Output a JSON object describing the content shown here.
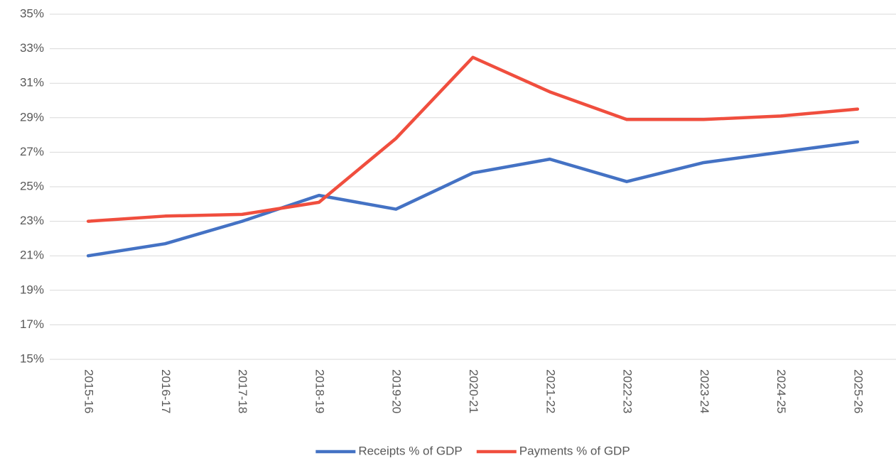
{
  "chart_data": {
    "type": "line",
    "categories": [
      "2015-16",
      "2016-17",
      "2017-18",
      "2018-19",
      "2019-20",
      "2020-21",
      "2021-22",
      "2022-23",
      "2023-24",
      "2024-25",
      "2025-26"
    ],
    "series": [
      {
        "name": "Receipts % of GDP",
        "color": "#4472c4",
        "values": [
          21.0,
          21.7,
          23.0,
          24.5,
          23.7,
          25.8,
          26.6,
          25.3,
          26.4,
          27.0,
          27.6
        ]
      },
      {
        "name": "Payments % of GDP",
        "color": "#f04e3e",
        "values": [
          23.0,
          23.3,
          23.4,
          24.1,
          27.8,
          32.5,
          30.5,
          28.9,
          28.9,
          29.1,
          29.5
        ]
      }
    ],
    "ylim": [
      15,
      35
    ],
    "yticks": [
      {
        "value": 15,
        "label": "15%"
      },
      {
        "value": 17,
        "label": "17%"
      },
      {
        "value": 19,
        "label": "19%"
      },
      {
        "value": 21,
        "label": "21%"
      },
      {
        "value": 23,
        "label": "23%"
      },
      {
        "value": 25,
        "label": "25%"
      },
      {
        "value": 27,
        "label": "27%"
      },
      {
        "value": 29,
        "label": "29%"
      },
      {
        "value": 31,
        "label": "31%"
      },
      {
        "value": 33,
        "label": "33%"
      },
      {
        "value": 35,
        "label": "35%"
      }
    ],
    "grid": true,
    "legend": "bottom"
  }
}
